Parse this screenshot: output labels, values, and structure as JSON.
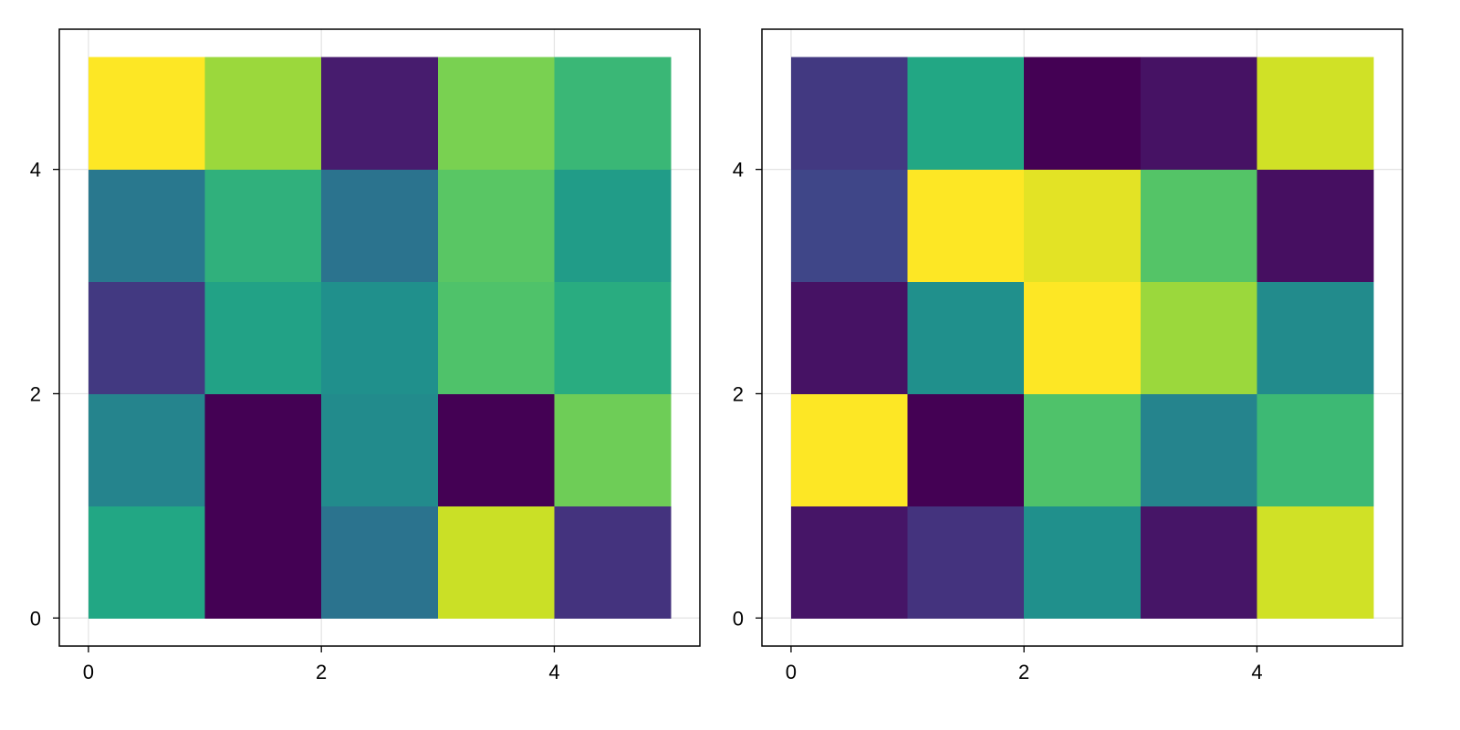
{
  "chart_data": [
    {
      "type": "heatmap",
      "colormap": "viridis",
      "x_edges": [
        0,
        1,
        2,
        3,
        4,
        5
      ],
      "y_edges": [
        0,
        1,
        2,
        3,
        4,
        5
      ],
      "xlim": [
        -0.25,
        5.25
      ],
      "ylim": [
        -0.25,
        5.25
      ],
      "x_ticks": [
        0,
        2,
        4
      ],
      "y_ticks": [
        0,
        2,
        4
      ],
      "x_tick_labels": [
        "0",
        "2",
        "4"
      ],
      "y_tick_labels": [
        "0",
        "2",
        "4"
      ],
      "grid": true,
      "values_note_rows_bottom_to_top": "normalized 0-1 color level",
      "values": [
        [
          0.6,
          0.0,
          0.38,
          0.92,
          0.15
        ],
        [
          0.45,
          0.0,
          0.48,
          0.0,
          0.78
        ],
        [
          0.17,
          0.58,
          0.5,
          0.72,
          0.62
        ],
        [
          0.4,
          0.64,
          0.38,
          0.74,
          0.55
        ],
        [
          1.0,
          0.85,
          0.08,
          0.8,
          0.67
        ]
      ],
      "title": "",
      "xlabel": "",
      "ylabel": ""
    },
    {
      "type": "heatmap",
      "colormap": "viridis",
      "x_edges": [
        0,
        1,
        2,
        3,
        4,
        5
      ],
      "y_edges": [
        0,
        1,
        2,
        3,
        4,
        5
      ],
      "xlim": [
        -0.25,
        5.25
      ],
      "ylim": [
        -0.25,
        5.25
      ],
      "x_ticks": [
        0,
        2,
        4
      ],
      "y_ticks": [
        0,
        2,
        4
      ],
      "x_tick_labels": [
        "0",
        "2",
        "4"
      ],
      "y_tick_labels": [
        "0",
        "2",
        "4"
      ],
      "grid": true,
      "values_note_rows_bottom_to_top": "normalized 0-1 color level",
      "values": [
        [
          0.06,
          0.15,
          0.5,
          0.06,
          0.93
        ],
        [
          1.0,
          0.0,
          0.72,
          0.45,
          0.68
        ],
        [
          0.05,
          0.5,
          1.0,
          0.85,
          0.48
        ],
        [
          0.21,
          1.0,
          0.96,
          0.73,
          0.04
        ],
        [
          0.17,
          0.6,
          0.0,
          0.05,
          0.93
        ]
      ],
      "title": "",
      "xlabel": "",
      "ylabel": ""
    }
  ]
}
